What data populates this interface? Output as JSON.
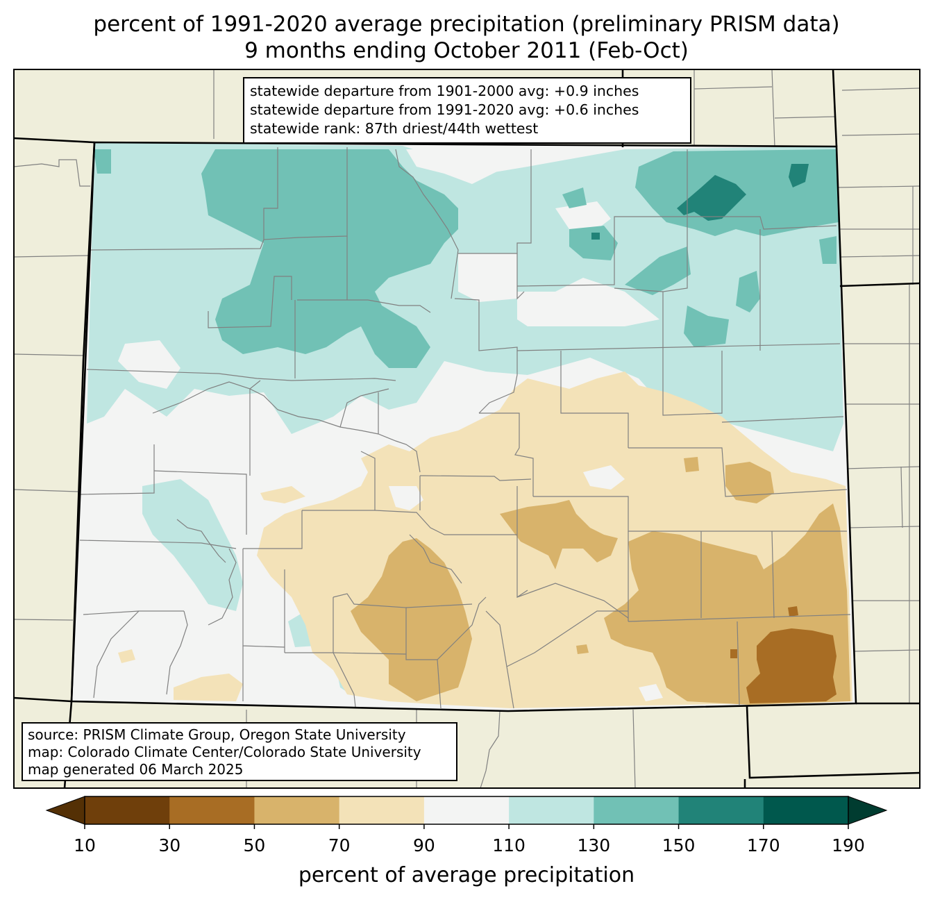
{
  "title": {
    "line1": "percent of 1991-2020 average precipitation (preliminary PRISM data)",
    "line2": "9 months ending October 2011 (Feb-Oct)"
  },
  "stats": {
    "line1": "statewide departure from 1901-2000 avg: +0.9 inches",
    "line2": "statewide departure from 1991-2020 avg: +0.6 inches",
    "line3": "statewide rank: 87th driest/44th wettest"
  },
  "source": {
    "line1": "source: PRISM Climate Group, Oregon State University",
    "line2": "map: Colorado Climate Center/Colorado State University",
    "line3": "map generated 06 March 2025"
  },
  "colorbar": {
    "label": "percent of average precipitation",
    "ticks": [
      "10",
      "30",
      "50",
      "70",
      "90",
      "110",
      "130",
      "150",
      "170",
      "190"
    ],
    "under_color": "#543005",
    "over_color": "#003c30",
    "colors": [
      "#6f3f0b",
      "#a86d24",
      "#d8b36b",
      "#f3e2b8",
      "#f3f4f3",
      "#bfe6e1",
      "#71c1b5",
      "#218378",
      "#00584d"
    ]
  },
  "map": {
    "background_color": "#efeedb",
    "state_border_color": "#000000",
    "county_border_color": "#808080"
  }
}
